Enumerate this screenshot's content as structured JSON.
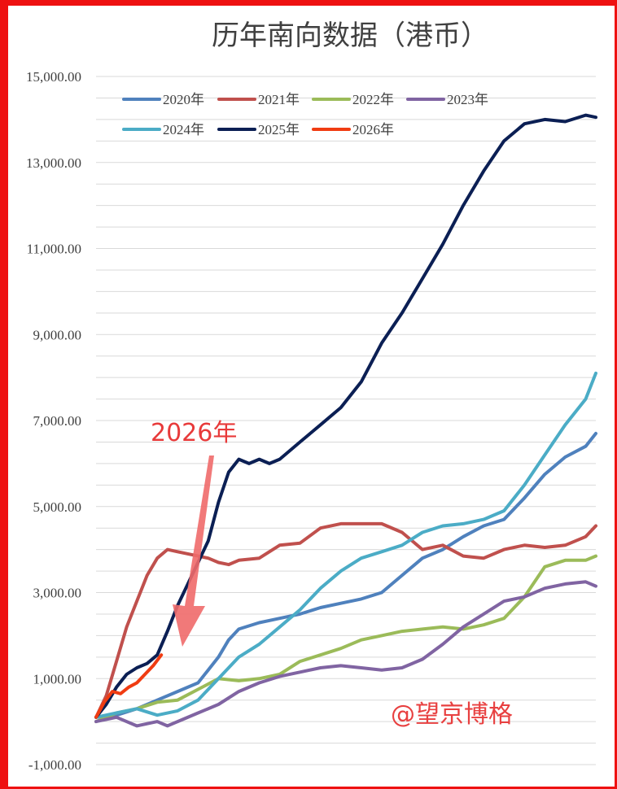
{
  "chart_data": {
    "type": "line",
    "title": "历年南向数据（港币）",
    "xlabel": "",
    "ylabel": "",
    "ylim": [
      -1000,
      15000
    ],
    "yticks": [
      -1000,
      1000,
      3000,
      5000,
      7000,
      9000,
      11000,
      13000,
      15000
    ],
    "ytick_labels": [
      "-1,000.00",
      "1,000.00",
      "3,000.00",
      "5,000.00",
      "7,000.00",
      "9,000.00",
      "11,000.00",
      "13,000.00",
      "15,000.00"
    ],
    "x_description": "trading day index within the year",
    "xlim": [
      0,
      245
    ],
    "grid": true,
    "legend": "top-left",
    "series": [
      {
        "name": "2020年",
        "color": "#4f81bd",
        "x": [
          0,
          10,
          20,
          30,
          40,
          50,
          55,
          60,
          65,
          70,
          80,
          90,
          100,
          110,
          120,
          130,
          140,
          150,
          160,
          170,
          180,
          190,
          200,
          210,
          220,
          230,
          240,
          245
        ],
        "values": [
          100,
          150,
          300,
          500,
          700,
          900,
          1200,
          1500,
          1900,
          2150,
          2300,
          2400,
          2500,
          2650,
          2750,
          2850,
          3000,
          3400,
          3800,
          4000,
          4300,
          4550,
          4700,
          5200,
          5750,
          6150,
          6400,
          6700
        ]
      },
      {
        "name": "2021年",
        "color": "#c0504d",
        "x": [
          0,
          5,
          10,
          15,
          20,
          25,
          30,
          35,
          40,
          45,
          50,
          55,
          60,
          65,
          70,
          80,
          90,
          100,
          110,
          120,
          130,
          140,
          150,
          160,
          170,
          180,
          190,
          200,
          210,
          220,
          230,
          240,
          245
        ],
        "values": [
          100,
          600,
          1400,
          2200,
          2800,
          3400,
          3800,
          4000,
          3950,
          3900,
          3850,
          3800,
          3700,
          3650,
          3750,
          3800,
          4100,
          4150,
          4500,
          4600,
          4600,
          4600,
          4400,
          4000,
          4100,
          3850,
          3800,
          4000,
          4100,
          4050,
          4100,
          4300,
          4550
        ]
      },
      {
        "name": "2022年",
        "color": "#9bbb59",
        "x": [
          0,
          10,
          20,
          30,
          40,
          50,
          60,
          70,
          80,
          90,
          100,
          110,
          120,
          130,
          140,
          150,
          160,
          170,
          180,
          190,
          200,
          210,
          220,
          230,
          240,
          245
        ],
        "values": [
          0,
          200,
          300,
          450,
          500,
          750,
          1000,
          950,
          1000,
          1100,
          1400,
          1550,
          1700,
          1900,
          2000,
          2100,
          2150,
          2200,
          2150,
          2250,
          2400,
          2900,
          3600,
          3750,
          3750,
          3850
        ]
      },
      {
        "name": "2023年",
        "color": "#8064a2",
        "x": [
          0,
          10,
          20,
          30,
          35,
          40,
          50,
          60,
          70,
          80,
          90,
          100,
          110,
          120,
          130,
          140,
          150,
          160,
          170,
          180,
          190,
          200,
          210,
          220,
          230,
          240,
          245
        ],
        "values": [
          0,
          100,
          -100,
          0,
          -100,
          0,
          200,
          400,
          700,
          900,
          1050,
          1150,
          1250,
          1300,
          1250,
          1200,
          1250,
          1450,
          1800,
          2200,
          2500,
          2800,
          2900,
          3100,
          3200,
          3250,
          3150
        ]
      },
      {
        "name": "2024年",
        "color": "#4bacc6",
        "x": [
          0,
          10,
          20,
          30,
          40,
          50,
          60,
          70,
          80,
          90,
          100,
          110,
          120,
          130,
          140,
          150,
          160,
          170,
          180,
          190,
          200,
          210,
          220,
          230,
          240,
          245
        ],
        "values": [
          100,
          200,
          300,
          150,
          250,
          500,
          1000,
          1500,
          1800,
          2200,
          2600,
          3100,
          3500,
          3800,
          3950,
          4100,
          4400,
          4550,
          4600,
          4700,
          4900,
          5500,
          6200,
          6900,
          7500,
          8100
        ]
      },
      {
        "name": "2025年",
        "color": "#0b1f54",
        "x": [
          0,
          5,
          10,
          15,
          20,
          25,
          30,
          35,
          40,
          45,
          50,
          55,
          60,
          65,
          70,
          75,
          80,
          85,
          90,
          95,
          100,
          105,
          110,
          120,
          130,
          140,
          150,
          160,
          170,
          180,
          190,
          200,
          210,
          220,
          230,
          240,
          245
        ],
        "values": [
          100,
          400,
          800,
          1100,
          1250,
          1350,
          1550,
          2100,
          2700,
          3200,
          3700,
          4200,
          5100,
          5800,
          6100,
          6000,
          6100,
          6000,
          6100,
          6300,
          6500,
          6700,
          6900,
          7300,
          7900,
          8800,
          9500,
          10300,
          11100,
          12000,
          12800,
          13500,
          13900,
          14000,
          13950,
          14100,
          14050
        ]
      },
      {
        "name": "2026年",
        "color": "#f03c12",
        "x": [
          0,
          4,
          8,
          12,
          16,
          20,
          24,
          28,
          32
        ],
        "values": [
          100,
          450,
          700,
          650,
          800,
          900,
          1100,
          1300,
          1550
        ]
      }
    ],
    "annotations": [
      {
        "text": "2026年",
        "color": "#e83a3a"
      }
    ]
  },
  "watermark": "@望京博格"
}
